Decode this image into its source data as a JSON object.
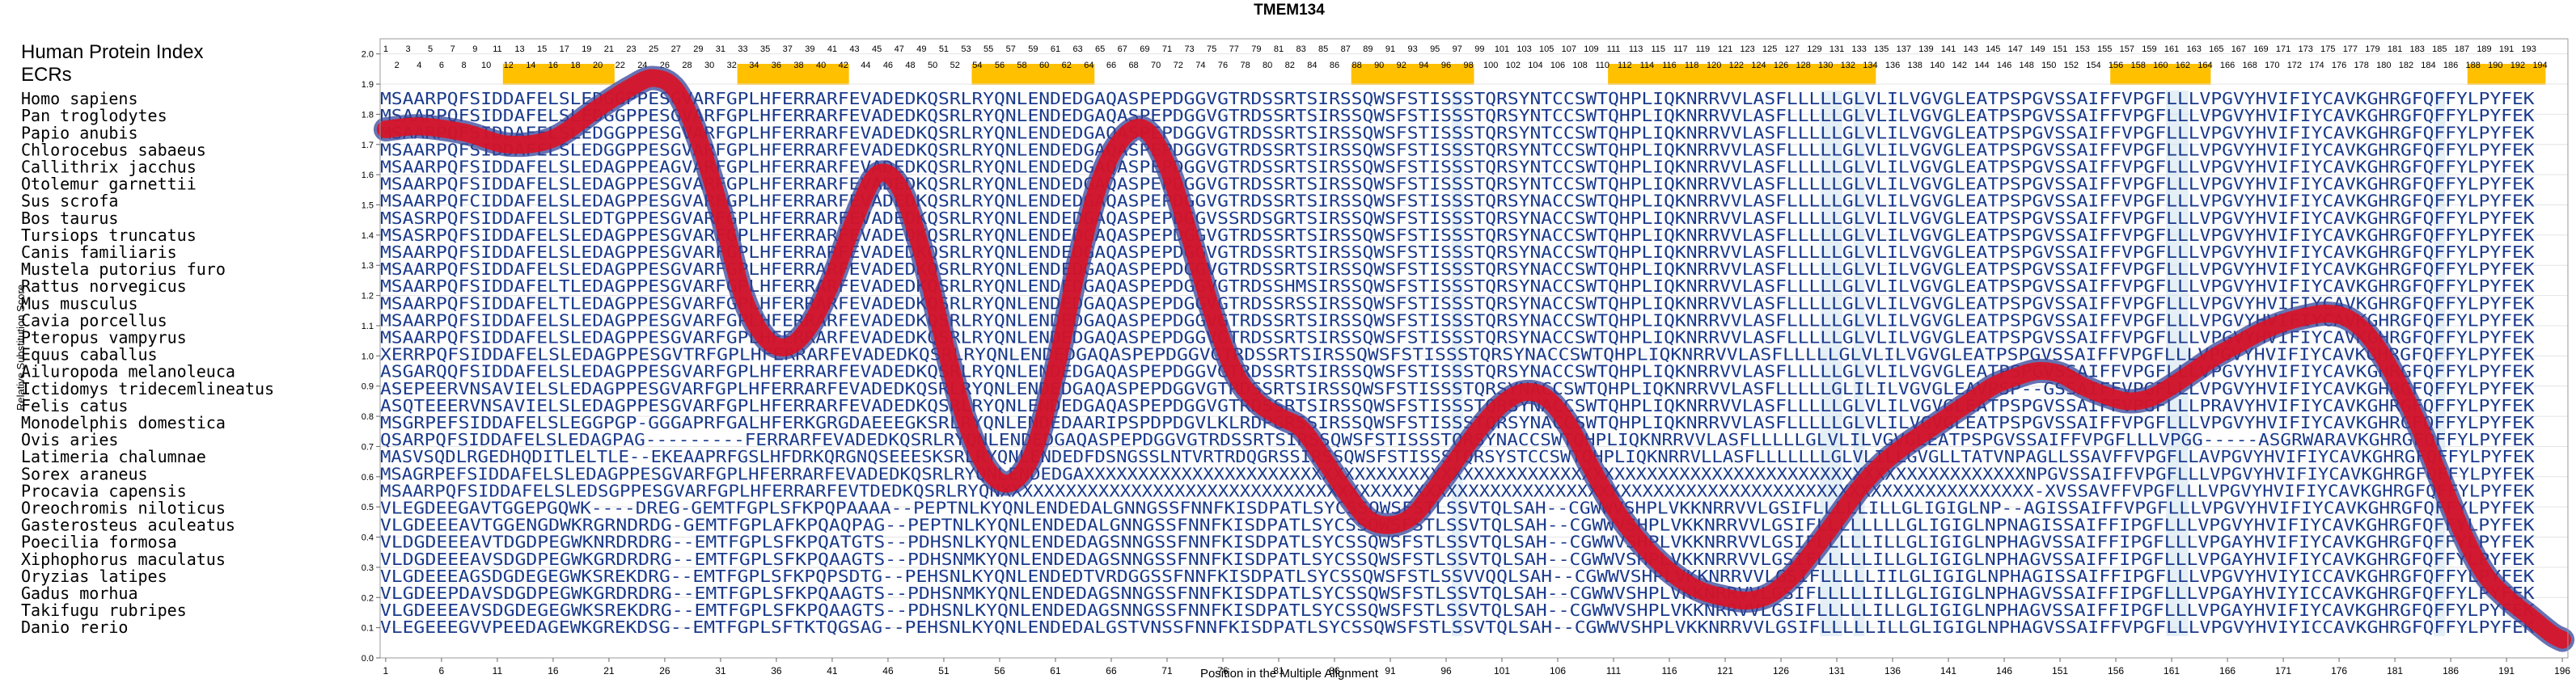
{
  "chart_data": {
    "type": "line",
    "title": "TMEM134",
    "xlabel": "Position in the Multiple Alignment",
    "ylabel": "Relative Substitution Score",
    "series_label": "Human Protein Index",
    "ecr_label": "ECRs",
    "xlim": [
      0.5,
      196.5
    ],
    "ylim": [
      0,
      2.05
    ],
    "yticks": [
      "0.0",
      "0.1",
      "0.2",
      "0.3",
      "0.4",
      "0.5",
      "0.6",
      "0.7",
      "0.8",
      "0.9",
      "1.0",
      "1.1",
      "1.2",
      "1.3",
      "1.4",
      "1.5",
      "1.6",
      "1.7",
      "1.8",
      "1.9",
      "2.0"
    ],
    "xticks": [
      1,
      6,
      11,
      16,
      21,
      26,
      31,
      36,
      41,
      46,
      51,
      56,
      61,
      66,
      71,
      76,
      81,
      86,
      91,
      96,
      101,
      106,
      111,
      116,
      121,
      126,
      131,
      136,
      141,
      146,
      151,
      156,
      161,
      166,
      171,
      176,
      181,
      186,
      191,
      196
    ],
    "index_range": [
      1,
      194
    ],
    "ecr_regions": [
      [
        12,
        21
      ],
      [
        33,
        42
      ],
      [
        54,
        64
      ],
      [
        88,
        98
      ],
      [
        111,
        134
      ],
      [
        156,
        164
      ],
      [
        188,
        194
      ]
    ],
    "species": [
      "Homo sapiens",
      "Pan troglodytes",
      "Papio anubis",
      "Chlorocebus sabaeus",
      "Callithrix jacchus",
      "Otolemur garnettii",
      "Sus scrofa",
      "Bos taurus",
      "Tursiops truncatus",
      "Canis familiaris",
      "Mustela putorius furo",
      "Rattus norvegicus",
      "Mus musculus",
      "Cavia porcellus",
      "Pteropus vampyrus",
      "Equus caballus",
      "Ailuropoda melanoleuca",
      "Ictidomys tridecemlineatus",
      "Felis catus",
      "Monodelphis domestica",
      "Ovis aries",
      "Latimeria chalumnae",
      "Sorex araneus",
      "Procavia capensis",
      "Oreochromis niloticus",
      "Gasterosteus aculeatus",
      "Poecilia formosa",
      "Xiphophorus maculatus",
      "Oryzias latipes",
      "Gadus morhua",
      "Takifugu rubripes",
      "Danio rerio"
    ],
    "sequences": [
      "MSAARPQFSIDDAFELSLEDGGPPESGVARFGPLHFERRARFEVADEDKQSRLRYQNLENDEDGAQASPEPDGGVGTRDSSRTSIRSSQWSFSTISSSTQRSYNTCCSWTQHPLIQKNRRVVLASFLLLLLGLVLILVGVGLEATPSPGVSSAIFFVPGFLLLVPGVYHVIFIYCAVKGHRGFQFFYLPYFEK",
      "MSAARPQFSIDDAFELSLEDGGPPESGVARFGPLHFERRARFEVADEDKQSRLRYQNLENDEDGAQASPEPDGGVGTRDSSRTSIRSSQWSFSTISSSTQRSYNTCCSWTQHPLIQKNRRVVLASFLLLLLGLVLILVGVGLEATPSPGVSSAIFFVPGFLLLVPGVYHVIFIYCAVKGHRGFQFFYLPYFEK",
      "MSAARPQFSIDDAFELSLEDGGPPESGVARFGPLHFERRARFEVADEDKQSRLRYQNLENDEDGAQASPEPDGGVGTRDSSRTSIRSSQWSFSTISSSTQRSYNTCCSWTQHPLIQKNRRVVLASFLLLLLGLVLILVGVGLEATPSPGVSSAIFFVPGFLLLVPGVYHVIFIYCAVKGHRGFQFFYLPYFEK",
      "MSAARPQFSIDDAFELSLEDGGPPESGVARFGPLHFERRARFEVADEDKQSRLRYQNLENDEDGAQASPEPDGGVGTRDSSRTSIRSSQWSFSTISSSTQRSYNTCCSWTQHPLIQKNRRVVLASFLLLLLGLVLILVGVGLEATPSPGVSSAIFFVPGFLLLVPGVYHVIFIYCAVKGHRGFQFFYLPYFEK",
      "MSAARPQFSIDDAFELSLEDAGPPEAGVARFGPLHFERRARFEVADEDKQSRLRYQNLENDEDGAQASPEPDGGVGTRDSSRTSIRSSQWSFSTISSSTQRSYNTCCSWTQHPLIQKNRRVVLASFLLLLLGLVLILVGVGLEATPSPGVSSAIFFVPGFLLLVPGVYHVIFIYCAVKGHRGFQFFYLPYFEK",
      "MSAARPQFSIDDAFELSLEDAGPPESGVARFGPLHFERRARFEVADEDKQSRLRYQNLENDEDGAQASPEPDGGVGTRDSSRTSIRSSQWSFSTISSSTQRSYNTCCSWTQHPLIQKNRRVVLASFLLLLLGLVLILVGVGLEATPSPGVSSAIFFVPGFLLLVPGVYHVIFIYCAVKGHRGFQFFYLPYFEK",
      "MSAARPQFCIDDAFELSLEDAGPPESGVARFGPLHFERRARFEVADEDKQSRLRYQNLENDEDGAQASPEPDGGVGTRDSSRTSIRSSQWSFSTISSSTQRSYNACCSWTQHPLIQKNRRVVLASFLLLLLGLVLILVGVGLEATPSPGVSSAIFFVPGFLLLVPGVYHVIFIYCAVKGHRGFQFFYLPYFEK",
      "MSASRPQFSIDDAFELSLEDTGPPESGVARFGPLHFERRARFEVADEDKQSRLRYQNLENDEDGAQASPEPDGGVSSRDSGRTSIRSSQWSFSTISSSTQRSYNACCSWTQHPLIQKNRRVVLASFLLLLLGLVLILVGVGLEATPSPGVSSAIFFVPGFLLLVPGVYHVIFIYCAVKGHRGFQFFYLPYFEK",
      "MSASRPQFSIDDAFELSLEDAGPPESGVARFGPLHFERRARFEVADEDKQSRLRYQNLENDEDGAQASPEPDGGVGTRDSSRTSIRSSQWSFSTISSSTQRSYNACCSWTQHPLIQKNRRVVLASFLLLLLGLVLILVGVGLEATPSPGVSSAIFFVPGFLLLVPGVYHVIFIYCAVKGHRGFQFFYLPYFEK",
      "MSAARPQFSIDDAFELSLEDAGPPESGVARFGPLHFERRARFEVADEDKQSRLRYQNLENDEDGAQASPEPDGGVGTRDSSRTSIRSSQWSFSTISSSTQRSYNACCSWTQHPLIQKNRRVVLASFLLLLLGLVLILVGVGLEATPSPGVSSAIFFVPGFLLLVPGVYHVIFIYCAVKGHRGFQFFYLPYFEK",
      "MSAARPQFSIDDAFELSLEDAGPPESGVARFGPLHFERRARFEVADEDKQSRLRYQNLENDEDGAQASPEPDGGVGTRDSSRTSIRSSQWSFSTISSSTQRSYNACCSWTQHPLIQKNRRVVLASFLLLLLGLVLILVGVGLEATPSPGVSSAIFFVPGFLLLVPGVYHVIFIYCAVKGHRGFQFFYLPYFEK",
      "MSAARPQFSIDDAFELTLEDAGPPESGVARFGPLHFERRARFEVADEDKQSRLRYQNLENDEDGAQASPEPDGGVGTRDSSHMSIRSSQWSFSTISSSTQRSYNACCSWTQHPLIQKNRRVVLASFLLLLLGLVLILVGVGLEATPSPGVSSAIFFVPGFLLLVPGVYHVIFIYCAVKGHRGFQFFYLPYFEK",
      "MSAARPQFSIDDAFELTLEDAGPPESGVARFGPLHFERRARFEVADEDKQSRLRYQNLENDEDGAQASPEPDGGVGTRDSSRSSIRSSQWSFSTISSSTQRSYNACCSWTQHPLIQKNRRVVLASFLLLLLGLVLILVGVGLEATPSPGVSSAIFFVPGFLLLVPGVYHVIFIYCAVKGHRGFQFFYLPYFEK",
      "MSAARPQFSIDDAFELSLEDAGPPESGVARFGPLHFERRARFEVADEDKQSRLRYQNLENDEDGAQASPEPDGGVGTRDSSRTSIRSSQWSFSTISSSTQRSYNACCSWTQHPLIQKNRRVVLASFLLLLLGLVLILVGVGLEATPSPGVSSAIFFVPGFLLLVPGVYHVIFIYCAVKGHRGFQFFYLPYFEK",
      "MSAARPQFSIDDAFELSLEDAGPPESGVARFGPLHFERRARFEVADEDKQSRLRYQNLENDEDGAQASPEPDGGVGTRDSSRTSIRSSQWSFSTISSSTQRSYNACCSWTQHPLIQKNRRVVLASFLLLLLGLVLILVGVGLEATPSPGVSSAIFFVPGFLLLVPGVYHVIFIYCAVKGHRGFQFFYLPYFEK",
      "XERRPQFSIDDAFELSLEDAGPPESGVTRFGPLHFERRARFEVADEDKQSRLRYQNLENDEDGAQASPEPDGGVGTRDSSRTSIRSSQWSFSTISSSTQRSYNACCSWTQHPLIQKNRRVVLASFLLLLLGLVLILVGVGLEATPSPGVSSAIFFVPGFLLLVPGVYHVIFIYCAVKGHRGFQFFYLPYFEK",
      "ASGARQQFSIDDAFELSLEDAGPPESGVARFGPLHFERRARFEVADEDKQSRLRYQNLENDEDGAQASPEPDGGVGTRDSSRTSIRSSQWSFSTISSSTQRSYNACCSWTQHPLIQKNRRVVLASFLLLLLGLVLILVGVGLEATPSPGVSSAIFFVPGFLLLVPGVYHVIFIYCAVKGHRGFQFFYLPYFEK",
      "ASEPEERVNSAVIELSLEDAGPPESGVARFGPLHFERRARFEVADEDKQSRLRYQNLENDEDGAQASPEPDGGVGTRDSSRTSIRSSQWSFSTISSSTQRSYNACCSWTQHPLIQKNRRVVLASFLLLLLGLILILVGVGLEAVPSP--GSSAIFFVPGFLLLVPGVYHVIFIYCAVKGHRGFQFFYLPYFEK",
      "ASQTEEERVNSAVIELSLEDAGPPESGVARFGPLHFERRARFEVADEDKQSRLRYQNLENDEDGAQASPEPDGGVGTRDSSRTSIRSSQWSFSTISSSTQRSYNACCSWTQHPLIQKNRRVVLASFLLLLLGLVLILVGVGLEATPSPGVSSAIFFVPGFLLLPRAVYHVIFIYCAVKGHRGFQFFYLPYFEK",
      "MSGRPEFSIDDAFELSLEGGPGP-GGGAPRFGALHFERKGRGDAEEEGKSRLRYQNLENDEDAARIPSPDPDGVLKLRDPGRSSIRSSQWSFSTISSSTQRSYNACCSWTQHPLIQKNRRVVLASFLLLLLGLVLILVGVGLEATPSPGVSSAIFFVPGFLLLVPGVYHVIFIYCAVKGHRGFQFFYLPYFEK",
      "QSARPQFSIDDAFELSLEDAGPAG---------FERRARFEVADEDKQSRLRYQNLENDEDGAQASPEPDGGVGTRDSSRTSIRSSQWSFSTISSSTQRSYNACCSWTQHPLIQKNRRVVLASFLLLLLGLVLILVGVGLEATPSPGVSSAIFFVPGFLLLVPGG-----ASGRWARAVKGHRGFQFFYLPYFEK",
      "MASVSQDLRGEDHQDITLELTLE--EKEAAPRFGSLHFDRKQRGNQSEEESKSRLRYQNLENDEDFDSNGSSLNTVRTRDQGRSSIRSSQWSFSTISSSTQRSYSTCCSWTQHPLIQKNRRVLLASFLLLLLLLGLVLILLGVGLLTATVNPAGLLSSAVFFVPGFLLAVPGVYHVIFIYCAVKGHRGFQFFYLPYFEK",
      "MSAGRPEFSIDDAFELSLEDAGPPESGVARFGPLHFERRARFEVADEDKQSRLRYQNLENDEDGAXXXXXXXXXXXXXXXXXXXXXXXXXXXXXXXXXXXXXXXXXXXXXXXXXXXXXXXXXXXXXXXXXXXXXXXXXXXXXXXXXXXXXXXNPGVSSAIFFVPGFLLLVPGVYHVIFIYCAVKGHRGFQFFYLPYFEK",
      "MSAARPQFSIDDAFELSLEDSGPPESGVARFGPLHFERRARFEVTDEDKQSRLRYQNXXXXXXXXXXXXXXXXXXXXXXXXXXXXXXXXXXXXXXXXXXXXXXXXXXXXXXXXXXXXXXXXXXXXXXXXXXXXXXXXXXXXXXXXXXXXXXX-XVSSAVFFVPGFLLLVPGVYHVIFIYCAVKGHRGFQFFYLPYFEK",
      "VLEGDEEGAVTGGEPGQWK----DREG-GEMTFGPLSFKPQPAAAA--PEPTNLKYQNLENDEDALGNNGSSFNNFKISDPATLSYCSSQWSFSTLSSVTQLSAH--CGWWVSHPLVKKNRRVVLGSIFLLLLLILLGLIGIGLNP--AGISSAIFFVPGFLLLVPGVYHVIFIYCAVKGHRGFQFFYLPYFEK",
      "VLGDEEEAVTGGENGDWKRGRNDRDG-GEMTFGPLAFKPQAQPAG--PEPTNLKYQNLENDEDALGNNGSSFNNFKISDPATLSYCSSQWSFSTLSSVTQLSAH--CGWWVSHPLVKKNRRVVLGSIFLLLLLLLLGLIGIGLNPNAGISSAIFFIPGFLLLVPGVYHVIFIYCAVKGHRGFQFFYLPYFEK",
      "VLDGDEEEAVTDGDPEGWKNRDRDRG--EMTFGPLSFKPQATGTS--PDHSNLKYQNLENDEDAGSNNGSSFNNFKISDPATLSYCSSQWSFSTLSSVTQLSAH--CGWWVSHPLVKKNRRVVLGSIFLLLLLILLGLIGIGLNPHAGVSSAIFFIPGFLLLVPGAYHVIFIYCAVKGHRGFQFFYLPYFEK",
      "VLDGDEEEAVSDGDPEGWKGRDRDRG--EMTFGPLSFKPQAAGTS--PDHSNMKYQNLENDEDAGSNNGSSFNNFKISDPATLSYCSSQWSFSTLSSVTQLSAH--CGWWVSHPLVKKNRRVVLGSIFLLLLLILLGLIGIGLNPHAGVSSAIFFIPGFLLLVPGAYHVIFIYCAVKGHRGFQFFYLPYFEK",
      "VLGDEEEAGSDGDEGEGWKSREKDRG--EMTFGPLSFKPQPSDTG--PEHSNLKYQNLENDEDTVRDGGSSFNNFKISDPATLSYCSSQWSFSTLSSVVQQLSAH--CGWWVSHPLVKKNRRVVLGSIFLLLLLIILGLIGIGLNPHAGISSAIFFIPGFLLLVPGVYHVIYICCAVKGHRGFQFFYLPYFEK",
      "VLGDEEPDAVSDGDPEGWKGRDRDRG--EMTFGPLSFKPQAAGTS--PDHSNMKYQNLENDEDAGSNNGSSFNNFKISDPATLSYCSSQWSFSTLSSVTQLSAH--CGWWVSHPLVKKNRRVVLGSIFLLLLLILLGLIGIGLNPHAGVSSAIFFIPGFLLLVPGAYHVIYICCAVKGHRGFQFFYLPYFEK",
      "VLGDEEEAVSDGDEGEGWKSREKDRG--EMTFGPLSFKPQAAGTS--PDHSNLKYQNLENDEDAGSNNGSSFNNFKISDPATLSYCSSQWSFSTLSSVTQLSAH--CGWWVSHPLVKKNRRVVLGSIFLLLLLILLGLIGIGLNPHAGVSSAIFFIPGFLLLVPGAYHVIFIYCAVKGHRGFQFFYLPYFEK",
      "VLEGEEEGVVPEEDAGEWKGREKDSG--EMTFGPLSFTKTQGSAG--PEHSNLKYQNLENDEDALGSTVNSSFNNFKISDPATLSYCSSQWSFSTLSSVTQLSAH--CGWWVSHPLVKKNRRVVLGSIFLLLLLILLGLIGIGLNPHAGVSSAIFFVPGFLLLVPGVYHVIYICCAVKGHRGFQFFYLPYFEK"
    ],
    "curve": [
      [
        1,
        1.75
      ],
      [
        4,
        1.76
      ],
      [
        8,
        1.74
      ],
      [
        12,
        1.7
      ],
      [
        16,
        1.72
      ],
      [
        20,
        1.82
      ],
      [
        23,
        1.89
      ],
      [
        25,
        1.92
      ],
      [
        27,
        1.88
      ],
      [
        29,
        1.72
      ],
      [
        31,
        1.48
      ],
      [
        33,
        1.2
      ],
      [
        35,
        1.06
      ],
      [
        37,
        1.03
      ],
      [
        39,
        1.1
      ],
      [
        41,
        1.25
      ],
      [
        43,
        1.45
      ],
      [
        45,
        1.6
      ],
      [
        47,
        1.56
      ],
      [
        49,
        1.35
      ],
      [
        51,
        1.05
      ],
      [
        53,
        0.78
      ],
      [
        55,
        0.62
      ],
      [
        57,
        0.58
      ],
      [
        59,
        0.68
      ],
      [
        61,
        0.95
      ],
      [
        63,
        1.3
      ],
      [
        65,
        1.58
      ],
      [
        67,
        1.72
      ],
      [
        69,
        1.75
      ],
      [
        71,
        1.63
      ],
      [
        73,
        1.4
      ],
      [
        75,
        1.15
      ],
      [
        77,
        0.95
      ],
      [
        79,
        0.85
      ],
      [
        81,
        0.8
      ],
      [
        83,
        0.76
      ],
      [
        85,
        0.66
      ],
      [
        87,
        0.55
      ],
      [
        89,
        0.46
      ],
      [
        91,
        0.44
      ],
      [
        93,
        0.47
      ],
      [
        95,
        0.56
      ],
      [
        97,
        0.66
      ],
      [
        99,
        0.76
      ],
      [
        101,
        0.84
      ],
      [
        103,
        0.88
      ],
      [
        105,
        0.86
      ],
      [
        107,
        0.77
      ],
      [
        109,
        0.63
      ],
      [
        111,
        0.5
      ],
      [
        113,
        0.4
      ],
      [
        115,
        0.32
      ],
      [
        117,
        0.26
      ],
      [
        119,
        0.22
      ],
      [
        121,
        0.2
      ],
      [
        123,
        0.19
      ],
      [
        125,
        0.21
      ],
      [
        127,
        0.27
      ],
      [
        129,
        0.36
      ],
      [
        131,
        0.46
      ],
      [
        133,
        0.56
      ],
      [
        135,
        0.64
      ],
      [
        137,
        0.7
      ],
      [
        139,
        0.75
      ],
      [
        141,
        0.8
      ],
      [
        143,
        0.85
      ],
      [
        145,
        0.9
      ],
      [
        147,
        0.93
      ],
      [
        149,
        0.95
      ],
      [
        151,
        0.94
      ],
      [
        153,
        0.9
      ],
      [
        155,
        0.87
      ],
      [
        157,
        0.85
      ],
      [
        159,
        0.86
      ],
      [
        161,
        0.9
      ],
      [
        163,
        0.95
      ],
      [
        165,
        1.0
      ],
      [
        167,
        1.04
      ],
      [
        169,
        1.08
      ],
      [
        171,
        1.11
      ],
      [
        173,
        1.13
      ],
      [
        175,
        1.14
      ],
      [
        177,
        1.12
      ],
      [
        179,
        1.05
      ],
      [
        181,
        0.93
      ],
      [
        183,
        0.78
      ],
      [
        185,
        0.6
      ],
      [
        187,
        0.42
      ],
      [
        189,
        0.28
      ],
      [
        191,
        0.2
      ],
      [
        193,
        0.14
      ],
      [
        195,
        0.08
      ],
      [
        196,
        0.06
      ]
    ],
    "series_color": "#dd1122",
    "series_shadow_color": "#334499",
    "ecr_color": "#ffc000",
    "seq_color": "#1a3a8c",
    "conserved_bg_color": "#cfe2ef",
    "grid": true
  }
}
